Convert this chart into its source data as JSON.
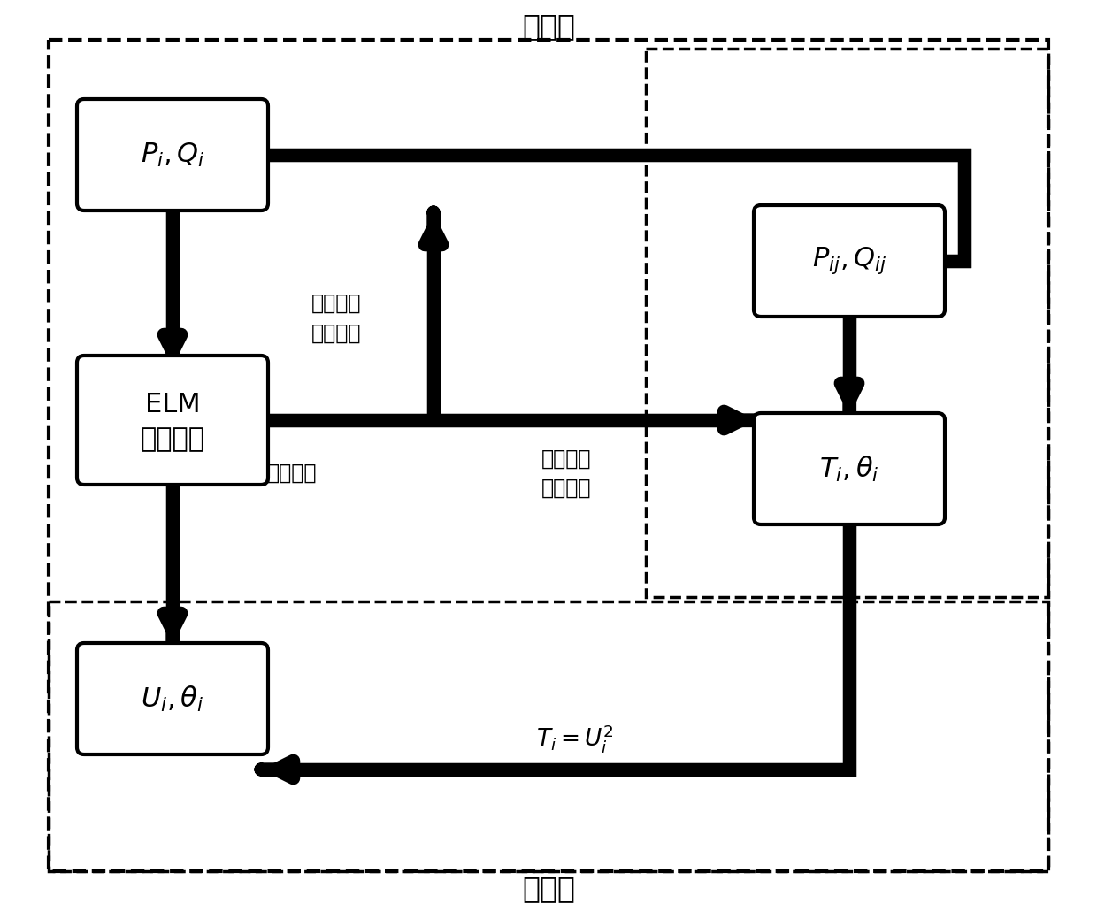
{
  "fig_width": 12.4,
  "fig_height": 10.3,
  "bg_color": "#ffffff",
  "stage1_label": "一阶段",
  "stage2_label": "二阶段",
  "elec_label": "电力网络\n拓扑结构",
  "chao_liu_label": "潮流特征",
  "other_info_label": "其他潮流\n物理信息",
  "ti_eq_label": "$T_i = U_i^2$",
  "box_PQi_label": "$P_i, Q_i$",
  "box_ELM_label1": "ELM",
  "box_ELM_label2": "神经网络",
  "box_PQij_label": "$P_{ij}, Q_{ij}$",
  "box_Tthetai_label": "$T_i, \\theta_i$",
  "box_Uthetai_label": "$U_i, \\theta_i$"
}
